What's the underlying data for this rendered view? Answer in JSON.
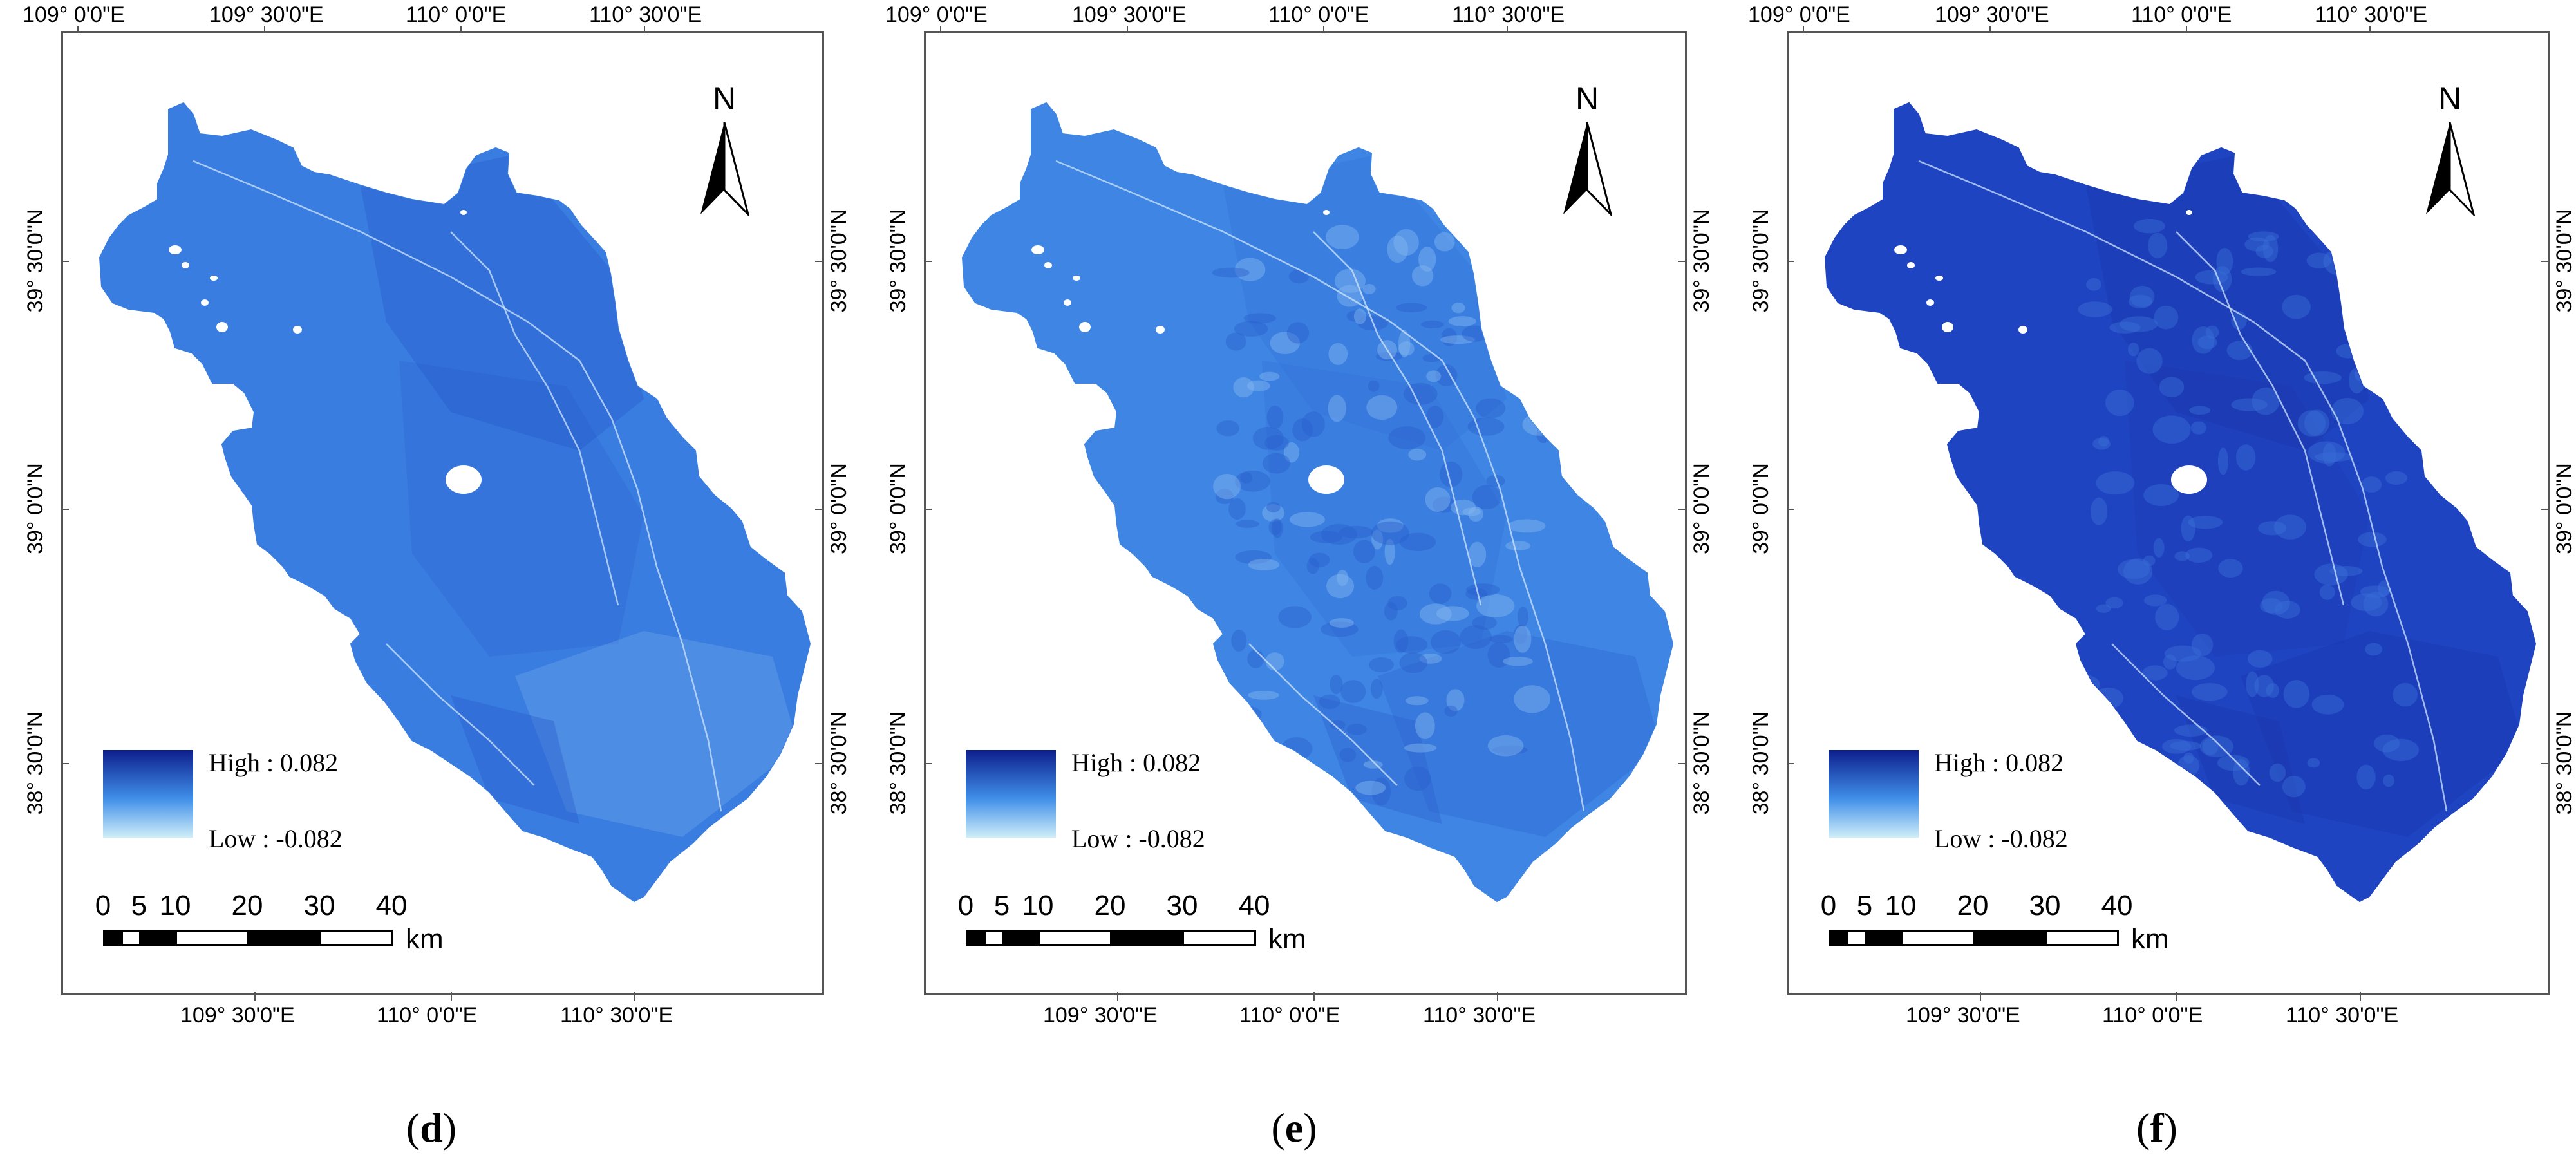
{
  "panels": [
    {
      "caption_open": "(",
      "caption_letter": "d",
      "caption_close": ")",
      "legend": {
        "high": "High : 0.082",
        "low": "Low : -0.082"
      },
      "map_fill": "#3a7de0",
      "map_dark": "#2457c8",
      "map_light": "#7fb3ee",
      "variant": "light"
    },
    {
      "caption_open": "(",
      "caption_letter": "e",
      "caption_close": ")",
      "legend": {
        "high": "High : 0.082",
        "low": "Low : -0.082"
      },
      "map_fill": "#3e85e4",
      "map_dark": "#2b5fcc",
      "map_light": "#86b9ef",
      "variant": "mottled"
    },
    {
      "caption_open": "(",
      "caption_letter": "f",
      "caption_close": ")",
      "legend": {
        "high": "High : 0.082",
        "low": "Low : -0.082"
      },
      "map_fill": "#1f44c2",
      "map_dark": "#1a33a8",
      "map_light": "#3a6fd8",
      "variant": "dark"
    }
  ],
  "top_lon_labels": [
    "109° 0'0\"E",
    "109° 30'0\"E",
    "110° 0'0\"E",
    "110° 30'0\"E"
  ],
  "bottom_lon_labels": [
    "109° 30'0\"E",
    "110° 0'0\"E",
    "110° 30'0\"E"
  ],
  "lat_labels": [
    "39° 30'0\"N",
    "39° 0'0\"N",
    "38° 30'0\"N"
  ],
  "north_letter": "N",
  "scale": {
    "ticks": [
      "0",
      "5",
      "10",
      "20",
      "30",
      "40"
    ],
    "unit": "km"
  },
  "legend_colors": {
    "high": "#0d1f8c",
    "mid": "#3f8ee8",
    "low": "#cfeef8"
  }
}
